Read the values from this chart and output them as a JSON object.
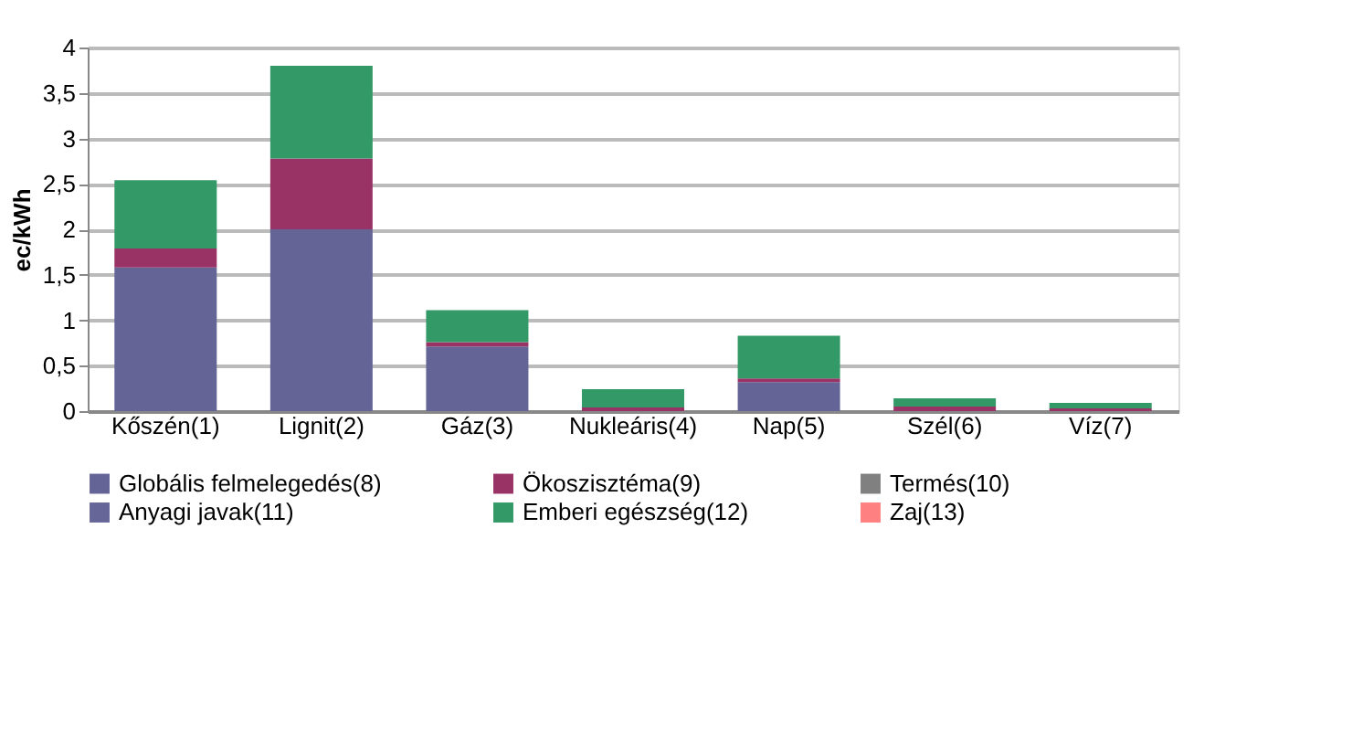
{
  "chart_data": {
    "type": "bar",
    "stacked": true,
    "ylabel": "ec/kWh",
    "categories": [
      "Kőszén(1)",
      "Lignit(2)",
      "Gáz(3)",
      "Nukleáris(4)",
      "Nap(5)",
      "Szél(6)",
      "Víz(7)"
    ],
    "series": [
      {
        "name": "Globális felmelegedés(8)",
        "color": "#646496",
        "values": [
          1.58,
          2.0,
          0.71,
          null,
          0.32,
          null,
          null
        ]
      },
      {
        "name": "Ökoszisztéma(9)",
        "color": "#993366",
        "values": [
          0.21,
          0.78,
          0.05,
          0.04,
          0.04,
          0.05,
          0.03
        ]
      },
      {
        "name": "Termés(10)",
        "color": "#808080",
        "values": [
          0,
          0,
          0,
          0,
          0,
          0,
          0
        ]
      },
      {
        "name": "Anyagi javak(11)",
        "color": "#666699",
        "values": [
          0,
          0,
          0,
          0,
          0,
          0,
          0
        ]
      },
      {
        "name": "Emberi egészség(12)",
        "color": "#339966",
        "values": [
          0.75,
          1.02,
          0.35,
          0.2,
          0.47,
          0.09,
          0.06
        ]
      },
      {
        "name": "Zaj(13)",
        "color": "#ff8080",
        "values": [
          0,
          0,
          0,
          0,
          0,
          0,
          0
        ]
      }
    ],
    "ylim": [
      0,
      4
    ],
    "yticks": [
      0,
      {
        "value": 0.5,
        "label": "0,5"
      },
      1,
      {
        "value": 1.5,
        "label": "1,5"
      },
      2,
      {
        "value": 2.5,
        "label": "2,5"
      },
      3,
      {
        "value": 3.5,
        "label": "3,5"
      },
      4
    ],
    "grid": "y",
    "legend": "bottom"
  }
}
